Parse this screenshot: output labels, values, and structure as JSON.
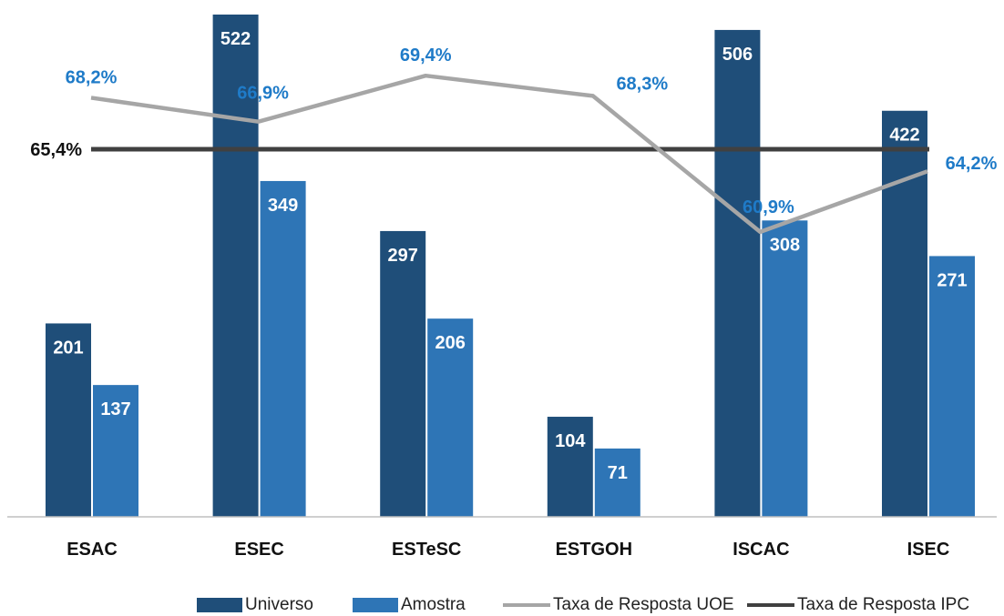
{
  "chart_data": {
    "type": "bar",
    "categories": [
      "ESAC",
      "ESEC",
      "ESTeSC",
      "ESTGOH",
      "ISCAC",
      "ISEC"
    ],
    "series": [
      {
        "name": "Universo",
        "type": "bar",
        "values": [
          201,
          522,
          297,
          104,
          506,
          422
        ],
        "labels": [
          "201",
          "522",
          "297",
          "104",
          "506",
          "422"
        ],
        "color": "#1f4e79"
      },
      {
        "name": "Amostra",
        "type": "bar",
        "values": [
          137,
          349,
          206,
          71,
          308,
          271
        ],
        "labels": [
          "137",
          "349",
          "206",
          "71",
          "308",
          "271"
        ],
        "color": "#2e75b6"
      },
      {
        "name": "Taxa de Resposta UOE",
        "type": "line",
        "values": [
          68.2,
          66.9,
          69.4,
          68.3,
          60.9,
          64.2
        ],
        "labels": [
          "68,2%",
          "66,9%",
          "69,4%",
          "68,3%",
          "60,9%",
          "64,2%"
        ],
        "color": "#a6a6a6"
      },
      {
        "name": "Taxa de Resposta IPC",
        "type": "line",
        "values": [
          65.4,
          65.4,
          65.4,
          65.4,
          65.4,
          65.4
        ],
        "label": "65,4%",
        "color": "#404040"
      }
    ],
    "title": "",
    "xlabel": "",
    "ylabel": "",
    "ylim_bars": [
      0,
      540
    ],
    "grid": false,
    "legend_position": "bottom"
  }
}
